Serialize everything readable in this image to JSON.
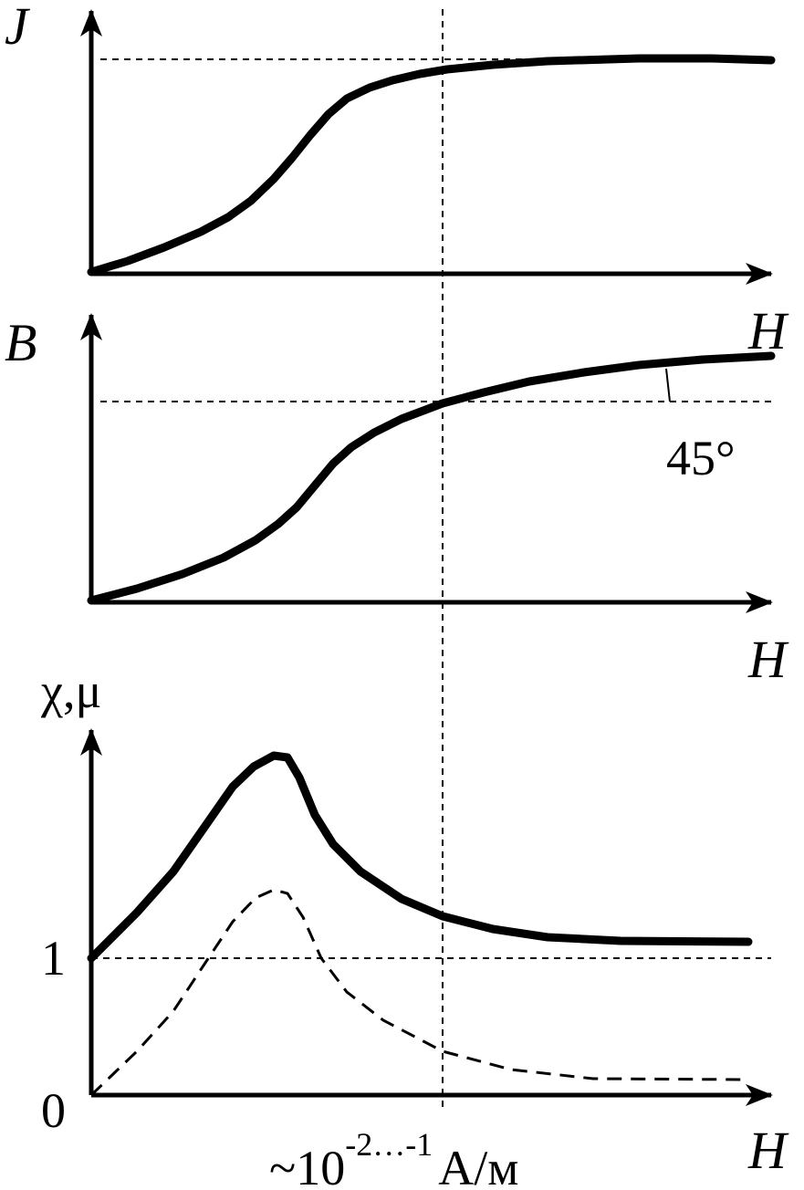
{
  "panels": [
    {
      "y_label": "J",
      "x_label": "H"
    },
    {
      "y_label": "B",
      "x_label": "H",
      "angle_label": "45°"
    },
    {
      "y_label": "χ,μ",
      "x_label": "H",
      "ticks": [
        "1",
        "0"
      ]
    }
  ],
  "footnote": {
    "base": "~10",
    "exponent": "-2…-1",
    "unit": "А/м"
  }
}
